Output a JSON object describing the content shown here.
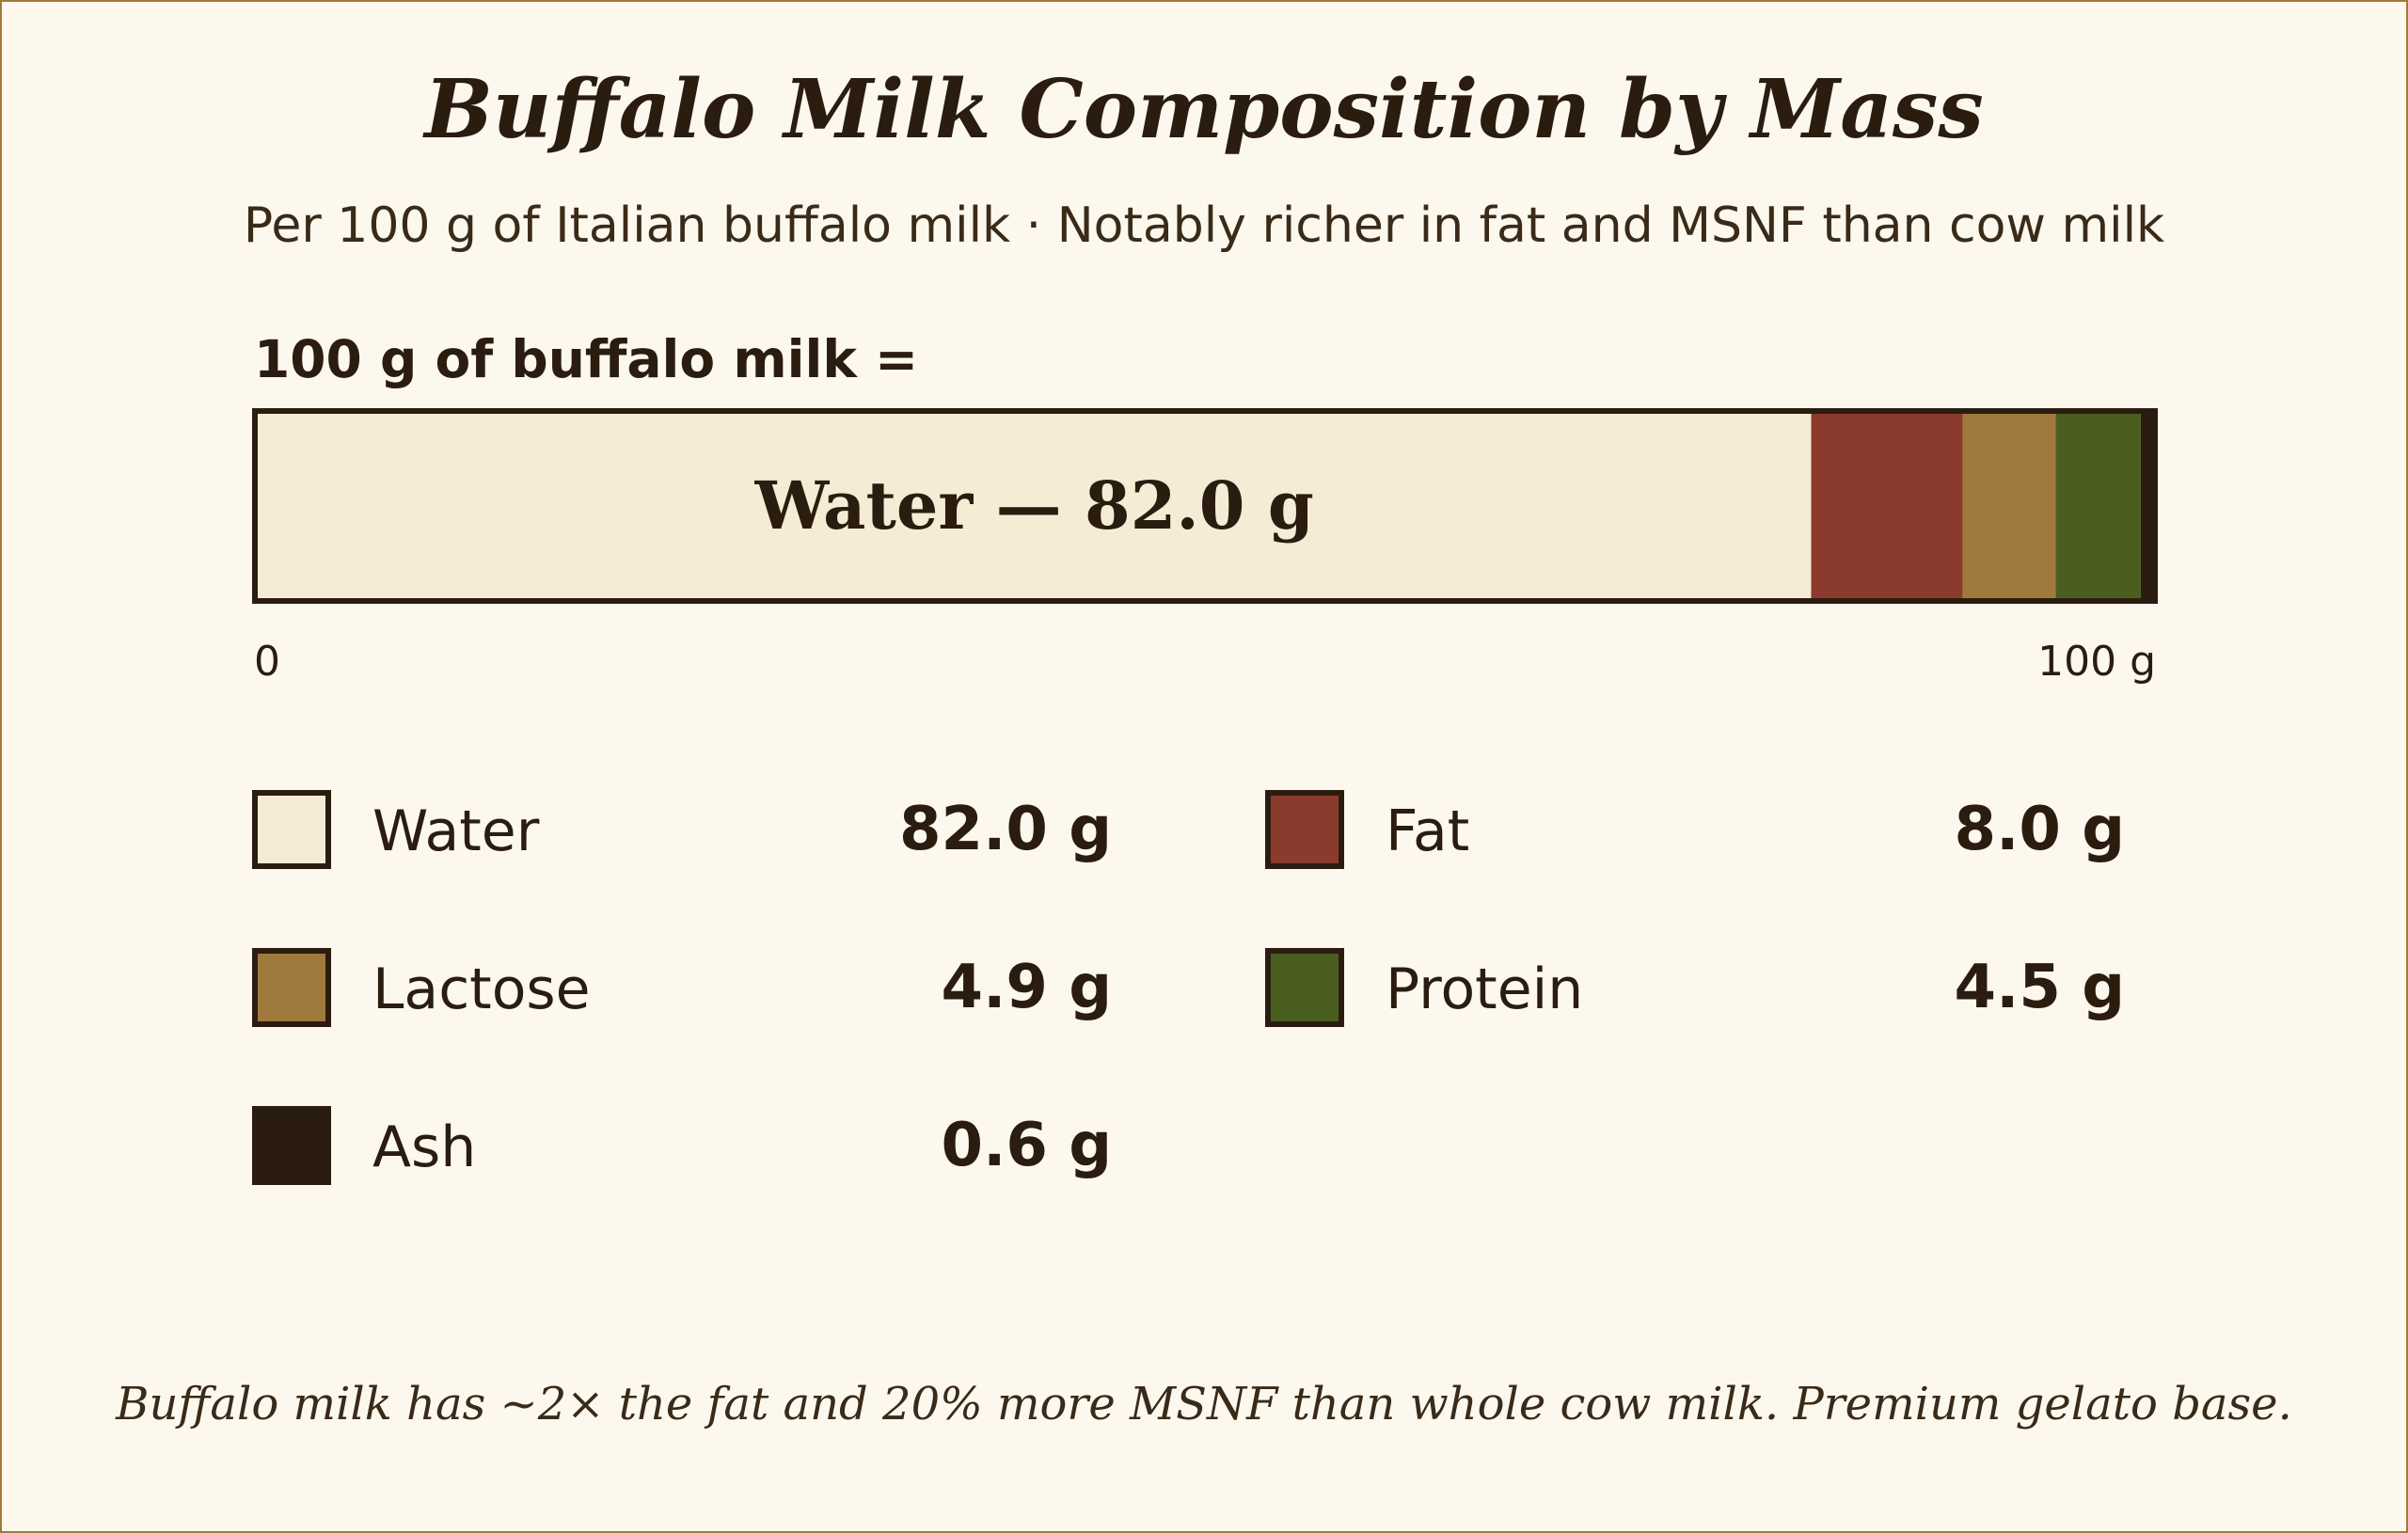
{
  "chart_data": {
    "type": "bar",
    "orientation": "horizontal-stacked",
    "title": "Buffalo Milk Composition by Mass",
    "subtitle": "Per 100 g of Italian buffalo milk · Notably richer in fat and MSNF than cow milk",
    "bar_heading": "100 g of buffalo milk =",
    "bar_inner_label": "Water — 82.0 g",
    "unit": "g",
    "xlim": [
      0,
      100
    ],
    "axis_min_label": "0",
    "axis_max_label": "100 g",
    "categories": [
      "Water",
      "Fat",
      "Lactose",
      "Protein",
      "Ash"
    ],
    "values": [
      82.0,
      8.0,
      4.9,
      4.5,
      0.6
    ],
    "value_labels": [
      "82.0 g",
      "8.0 g",
      "4.9 g",
      "4.5 g",
      "0.6 g"
    ],
    "colors": [
      "#f5ecd6",
      "#8b3a2e",
      "#a07a3c",
      "#4a5e20",
      "#2a1d10"
    ],
    "legend_order": [
      "Water",
      "Fat",
      "Lactose",
      "Protein",
      "Ash"
    ],
    "footnote": "Buffalo milk has ~2× the fat and 20% more MSNF than whole cow milk. Premium gelato base."
  },
  "colors": {
    "background": "#fcf8ee",
    "border": "#a07a3c",
    "text": "#2a1d10"
  }
}
